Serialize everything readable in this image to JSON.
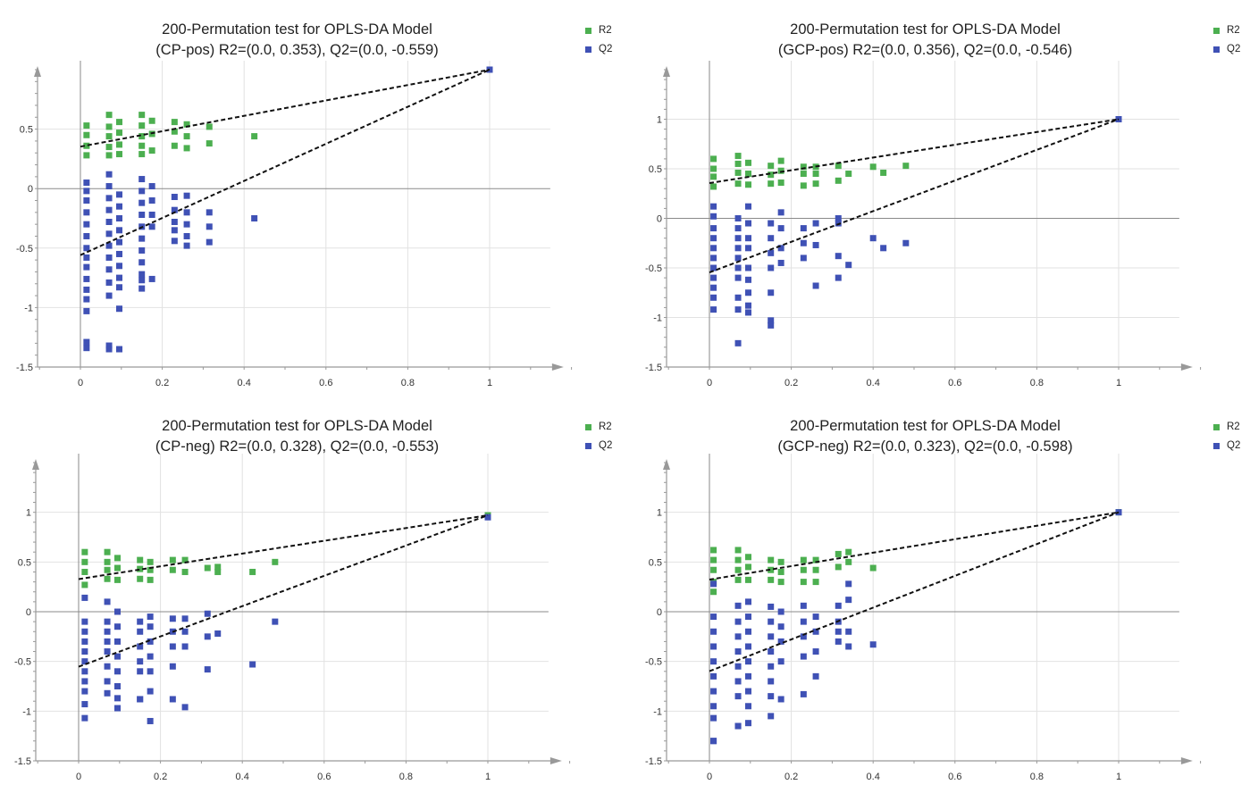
{
  "chart_data": [
    {
      "type": "scatter",
      "title": "200-Permutation test for  OPLS-DA Model",
      "subtitle": "(CP-pos) R2=(0.0, 0.353), Q2=(0.0, -0.559)",
      "xlim": [
        -0.1,
        1.2
      ],
      "ylim": [
        -1.5,
        1.0
      ],
      "xticks": [
        0,
        0.2,
        0.4,
        0.6,
        0.8,
        1
      ],
      "yticks": [
        -1.5,
        -1,
        -0.5,
        0,
        0.5
      ],
      "grid": true,
      "legend_position": "top-right",
      "series": [
        {
          "name": "R2",
          "color": "#4caf50",
          "x": [
            0.015,
            0.015,
            0.015,
            0.015,
            0.07,
            0.07,
            0.07,
            0.07,
            0.07,
            0.095,
            0.095,
            0.095,
            0.095,
            0.15,
            0.15,
            0.15,
            0.15,
            0.15,
            0.175,
            0.175,
            0.175,
            0.23,
            0.23,
            0.23,
            0.26,
            0.26,
            0.26,
            0.315,
            0.315,
            0.425,
            1.0
          ],
          "y": [
            0.53,
            0.45,
            0.36,
            0.28,
            0.62,
            0.52,
            0.44,
            0.35,
            0.28,
            0.56,
            0.47,
            0.37,
            0.29,
            0.62,
            0.53,
            0.44,
            0.36,
            0.29,
            0.57,
            0.46,
            0.32,
            0.56,
            0.48,
            0.36,
            0.54,
            0.44,
            0.34,
            0.52,
            0.38,
            0.44,
            1.0
          ]
        },
        {
          "name": "Q2",
          "color": "#3f51b5",
          "x": [
            0.015,
            0.015,
            0.015,
            0.015,
            0.015,
            0.015,
            0.015,
            0.015,
            0.015,
            0.015,
            0.015,
            0.015,
            0.015,
            0.015,
            0.015,
            0.07,
            0.07,
            0.07,
            0.07,
            0.07,
            0.07,
            0.07,
            0.07,
            0.07,
            0.07,
            0.07,
            0.07,
            0.07,
            0.095,
            0.095,
            0.095,
            0.095,
            0.095,
            0.095,
            0.095,
            0.095,
            0.095,
            0.095,
            0.095,
            0.15,
            0.15,
            0.15,
            0.15,
            0.15,
            0.15,
            0.15,
            0.15,
            0.15,
            0.15,
            0.15,
            0.175,
            0.175,
            0.175,
            0.175,
            0.175,
            0.23,
            0.23,
            0.23,
            0.23,
            0.23,
            0.26,
            0.26,
            0.26,
            0.26,
            0.26,
            0.315,
            0.315,
            0.315,
            0.425,
            1.0
          ],
          "y": [
            0.05,
            -0.02,
            -0.1,
            -0.2,
            -0.3,
            -0.4,
            -0.5,
            -0.58,
            -0.66,
            -0.76,
            -0.85,
            -0.93,
            -1.03,
            -1.29,
            -1.34,
            0.12,
            0.02,
            -0.08,
            -0.18,
            -0.28,
            -0.38,
            -0.48,
            -0.58,
            -0.68,
            -0.79,
            -0.9,
            -1.32,
            -1.35,
            -0.05,
            -0.15,
            -0.25,
            -0.35,
            -0.45,
            -0.55,
            -0.65,
            -0.75,
            -0.83,
            -1.01,
            -1.35,
            0.08,
            -0.02,
            -0.12,
            -0.22,
            -0.32,
            -0.42,
            -0.52,
            -0.62,
            -0.72,
            -0.77,
            -0.84,
            0.02,
            -0.1,
            -0.22,
            -0.32,
            -0.76,
            -0.07,
            -0.18,
            -0.28,
            -0.35,
            -0.44,
            -0.06,
            -0.2,
            -0.3,
            -0.4,
            -0.48,
            -0.2,
            -0.32,
            -0.45,
            -0.25,
            1.0
          ]
        }
      ],
      "regression_lines": [
        {
          "name": "R2",
          "x": [
            0,
            1
          ],
          "y": [
            0.353,
            1.0
          ]
        },
        {
          "name": "Q2",
          "x": [
            0,
            1
          ],
          "y": [
            -0.559,
            1.0
          ]
        }
      ]
    },
    {
      "type": "scatter",
      "title": "200-Permutation test for  OPLS-DA Model",
      "subtitle": "(GCP-pos) R2=(0.0, 0.356), Q2=(0.0, -0.546)",
      "xlim": [
        -0.1,
        1.2
      ],
      "ylim": [
        -1.5,
        1.5
      ],
      "xticks": [
        0,
        0.2,
        0.4,
        0.6,
        0.8,
        1
      ],
      "yticks": [
        -1.5,
        -1,
        -0.5,
        0,
        0.5,
        1
      ],
      "grid": true,
      "legend_position": "top-right",
      "series": [
        {
          "name": "R2",
          "color": "#4caf50",
          "x": [
            0.01,
            0.01,
            0.01,
            0.01,
            0.07,
            0.07,
            0.07,
            0.07,
            0.095,
            0.095,
            0.095,
            0.15,
            0.15,
            0.15,
            0.175,
            0.175,
            0.175,
            0.23,
            0.23,
            0.23,
            0.26,
            0.26,
            0.26,
            0.315,
            0.315,
            0.34,
            0.4,
            0.425,
            0.48,
            1.0
          ],
          "y": [
            0.6,
            0.5,
            0.42,
            0.32,
            0.63,
            0.55,
            0.46,
            0.35,
            0.56,
            0.45,
            0.34,
            0.53,
            0.44,
            0.35,
            0.58,
            0.48,
            0.36,
            0.52,
            0.45,
            0.33,
            0.52,
            0.45,
            0.35,
            0.53,
            0.38,
            0.45,
            0.52,
            0.46,
            0.53,
            1.0
          ]
        },
        {
          "name": "Q2",
          "color": "#3f51b5",
          "x": [
            0.01,
            0.01,
            0.01,
            0.01,
            0.01,
            0.01,
            0.01,
            0.01,
            0.01,
            0.01,
            0.01,
            0.07,
            0.07,
            0.07,
            0.07,
            0.07,
            0.07,
            0.07,
            0.07,
            0.07,
            0.07,
            0.095,
            0.095,
            0.095,
            0.095,
            0.095,
            0.095,
            0.095,
            0.095,
            0.095,
            0.15,
            0.15,
            0.15,
            0.15,
            0.15,
            0.15,
            0.15,
            0.175,
            0.175,
            0.175,
            0.175,
            0.23,
            0.23,
            0.23,
            0.26,
            0.26,
            0.26,
            0.315,
            0.315,
            0.315,
            0.315,
            0.34,
            0.4,
            0.425,
            0.48,
            1.0
          ],
          "y": [
            0.12,
            0.02,
            -0.1,
            -0.2,
            -0.3,
            -0.4,
            -0.5,
            -0.6,
            -0.7,
            -0.8,
            -0.92,
            0.0,
            -0.1,
            -0.2,
            -0.3,
            -0.4,
            -0.5,
            -0.6,
            -0.8,
            -0.92,
            -1.26,
            0.12,
            -0.05,
            -0.2,
            -0.3,
            -0.5,
            -0.62,
            -0.75,
            -0.88,
            -0.95,
            -0.05,
            -0.2,
            -0.35,
            -0.5,
            -0.75,
            -1.03,
            -1.08,
            0.06,
            -0.1,
            -0.3,
            -0.45,
            -0.1,
            -0.25,
            -0.4,
            -0.05,
            -0.27,
            -0.68,
            0.0,
            -0.05,
            -0.38,
            -0.6,
            -0.47,
            -0.2,
            -0.3,
            -0.25,
            1.0
          ]
        }
      ],
      "regression_lines": [
        {
          "name": "R2",
          "x": [
            0,
            1
          ],
          "y": [
            0.356,
            1.0
          ]
        },
        {
          "name": "Q2",
          "x": [
            0,
            1
          ],
          "y": [
            -0.546,
            1.0
          ]
        }
      ]
    },
    {
      "type": "scatter",
      "title": "200-Permutation test for OPLS-DA Model",
      "subtitle": "(CP-neg) R2=(0.0, 0.328), Q2=(0.0, -0.553)",
      "xlim": [
        -0.1,
        1.2
      ],
      "ylim": [
        -1.5,
        1.5
      ],
      "xticks": [
        0,
        0.2,
        0.4,
        0.6,
        0.8,
        1
      ],
      "yticks": [
        -1.5,
        -1,
        -0.5,
        0,
        0.5,
        1
      ],
      "grid": true,
      "legend_position": "top-right",
      "series": [
        {
          "name": "R2",
          "color": "#4caf50",
          "x": [
            0.015,
            0.015,
            0.015,
            0.015,
            0.07,
            0.07,
            0.07,
            0.07,
            0.095,
            0.095,
            0.095,
            0.15,
            0.15,
            0.15,
            0.175,
            0.175,
            0.175,
            0.23,
            0.23,
            0.26,
            0.26,
            0.315,
            0.34,
            0.34,
            0.425,
            0.48,
            1.0
          ],
          "y": [
            0.6,
            0.5,
            0.4,
            0.27,
            0.6,
            0.5,
            0.42,
            0.33,
            0.54,
            0.44,
            0.32,
            0.52,
            0.43,
            0.33,
            0.5,
            0.42,
            0.32,
            0.52,
            0.42,
            0.52,
            0.4,
            0.44,
            0.45,
            0.4,
            0.4,
            0.5,
            0.97
          ]
        },
        {
          "name": "Q2",
          "color": "#3f51b5",
          "x": [
            0.015,
            0.015,
            0.015,
            0.015,
            0.015,
            0.015,
            0.015,
            0.015,
            0.015,
            0.015,
            0.015,
            0.07,
            0.07,
            0.07,
            0.07,
            0.07,
            0.07,
            0.07,
            0.07,
            0.095,
            0.095,
            0.095,
            0.095,
            0.095,
            0.095,
            0.095,
            0.095,
            0.15,
            0.15,
            0.15,
            0.15,
            0.15,
            0.15,
            0.15,
            0.175,
            0.175,
            0.175,
            0.175,
            0.175,
            0.175,
            0.175,
            0.23,
            0.23,
            0.23,
            0.23,
            0.23,
            0.26,
            0.26,
            0.26,
            0.26,
            0.315,
            0.315,
            0.315,
            0.34,
            0.425,
            0.48,
            1.0
          ],
          "y": [
            0.14,
            -0.1,
            -0.2,
            -0.3,
            -0.4,
            -0.5,
            -0.6,
            -0.7,
            -0.8,
            -0.93,
            -1.07,
            0.1,
            -0.1,
            -0.2,
            -0.3,
            -0.4,
            -0.55,
            -0.7,
            -0.82,
            0.0,
            -0.15,
            -0.3,
            -0.45,
            -0.6,
            -0.75,
            -0.87,
            -0.97,
            -0.1,
            -0.2,
            -0.35,
            -0.5,
            -0.6,
            -0.88,
            -0.88,
            -0.05,
            -0.15,
            -0.3,
            -0.45,
            -0.6,
            -0.8,
            -1.1,
            -0.07,
            -0.2,
            -0.35,
            -0.55,
            -0.88,
            -0.07,
            -0.2,
            -0.35,
            -0.96,
            -0.02,
            -0.25,
            -0.58,
            -0.22,
            -0.53,
            -0.1,
            0.95
          ]
        }
      ],
      "regression_lines": [
        {
          "name": "R2",
          "x": [
            0,
            1
          ],
          "y": [
            0.328,
            0.97
          ]
        },
        {
          "name": "Q2",
          "x": [
            0,
            1
          ],
          "y": [
            -0.553,
            0.97
          ]
        }
      ]
    },
    {
      "type": "scatter",
      "title": "200-Permutation test for OPLS-DA Model",
      "subtitle": "(GCP-neg)  R2=(0.0, 0.323), Q2=(0.0, -0.598)",
      "xlim": [
        -0.1,
        1.2
      ],
      "ylim": [
        -1.5,
        1.5
      ],
      "xticks": [
        0,
        0.2,
        0.4,
        0.6,
        0.8,
        1
      ],
      "yticks": [
        -1.5,
        -1,
        -0.5,
        0,
        0.5,
        1
      ],
      "grid": true,
      "legend_position": "top-right",
      "series": [
        {
          "name": "R2",
          "color": "#4caf50",
          "x": [
            0.01,
            0.01,
            0.01,
            0.01,
            0.01,
            0.07,
            0.07,
            0.07,
            0.07,
            0.095,
            0.095,
            0.095,
            0.15,
            0.15,
            0.15,
            0.175,
            0.175,
            0.175,
            0.23,
            0.23,
            0.23,
            0.26,
            0.26,
            0.26,
            0.315,
            0.315,
            0.34,
            0.34,
            0.4,
            1.0
          ],
          "y": [
            0.62,
            0.52,
            0.42,
            0.3,
            0.2,
            0.62,
            0.52,
            0.42,
            0.32,
            0.55,
            0.45,
            0.32,
            0.52,
            0.42,
            0.32,
            0.5,
            0.4,
            0.3,
            0.52,
            0.42,
            0.3,
            0.52,
            0.42,
            0.3,
            0.58,
            0.45,
            0.6,
            0.5,
            0.44,
            1.0
          ]
        },
        {
          "name": "Q2",
          "color": "#3f51b5",
          "x": [
            0.01,
            0.01,
            0.01,
            0.01,
            0.01,
            0.01,
            0.01,
            0.01,
            0.01,
            0.01,
            0.01,
            0.07,
            0.07,
            0.07,
            0.07,
            0.07,
            0.07,
            0.07,
            0.07,
            0.07,
            0.095,
            0.095,
            0.095,
            0.095,
            0.095,
            0.095,
            0.095,
            0.095,
            0.095,
            0.15,
            0.15,
            0.15,
            0.15,
            0.15,
            0.15,
            0.15,
            0.15,
            0.175,
            0.175,
            0.175,
            0.175,
            0.175,
            0.23,
            0.23,
            0.23,
            0.23,
            0.23,
            0.26,
            0.26,
            0.26,
            0.26,
            0.315,
            0.315,
            0.315,
            0.315,
            0.34,
            0.34,
            0.34,
            0.34,
            0.4,
            1.0
          ],
          "y": [
            0.28,
            -0.05,
            -0.2,
            -0.35,
            -0.5,
            -0.65,
            -0.8,
            -0.95,
            -1.07,
            -1.3,
            -1.3,
            0.06,
            -0.1,
            -0.25,
            -0.4,
            -0.55,
            -0.7,
            -0.85,
            -1.15,
            -1.15,
            0.1,
            -0.05,
            -0.2,
            -0.35,
            -0.5,
            -0.65,
            -0.8,
            -0.95,
            -1.12,
            0.05,
            -0.1,
            -0.25,
            -0.4,
            -0.55,
            -0.7,
            -0.85,
            -1.05,
            0.0,
            -0.15,
            -0.3,
            -0.5,
            -0.88,
            0.06,
            -0.1,
            -0.25,
            -0.45,
            -0.83,
            -0.05,
            -0.2,
            -0.4,
            -0.65,
            0.06,
            -0.1,
            -0.2,
            -0.3,
            0.28,
            0.12,
            -0.2,
            -0.35,
            -0.33,
            1.0
          ]
        }
      ],
      "regression_lines": [
        {
          "name": "R2",
          "x": [
            0,
            1
          ],
          "y": [
            0.323,
            1.0
          ]
        },
        {
          "name": "Q2",
          "x": [
            0,
            1
          ],
          "y": [
            -0.598,
            1.0
          ]
        }
      ]
    }
  ]
}
